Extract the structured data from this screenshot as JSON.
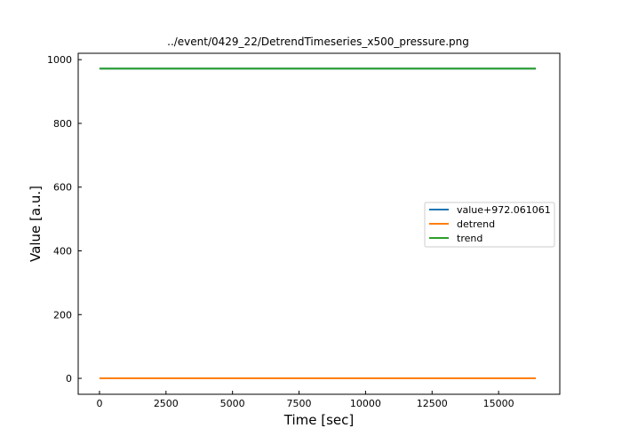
{
  "chart_data": {
    "type": "line",
    "title": "../event/0429_22/DetrendTimeseries_x500_pressure.png",
    "xlabel": "Time [sec]",
    "ylabel": "Value [a.u.]",
    "xlim": [
      -800,
      17300
    ],
    "ylim": [
      -50,
      1020
    ],
    "xticks": [
      0,
      2500,
      5000,
      7500,
      10000,
      12500,
      15000
    ],
    "xtick_labels": [
      "0",
      "2500",
      "5000",
      "7500",
      "10000",
      "12500",
      "15000"
    ],
    "yticks": [
      0,
      200,
      400,
      600,
      800,
      1000
    ],
    "ytick_labels": [
      "0",
      "200",
      "400",
      "600",
      "800",
      "1000"
    ],
    "grid": false,
    "legend_position": "center-right",
    "series": [
      {
        "name": "value+972.061061",
        "color": "#1f77b4",
        "x": [
          0,
          16400
        ],
        "y": [
          972.06,
          972.06
        ]
      },
      {
        "name": "detrend",
        "color": "#ff7f0e",
        "x": [
          0,
          16400
        ],
        "y": [
          0,
          0
        ]
      },
      {
        "name": "trend",
        "color": "#2ca02c",
        "x": [
          0,
          16400
        ],
        "y": [
          972.06,
          972.06
        ]
      }
    ]
  }
}
